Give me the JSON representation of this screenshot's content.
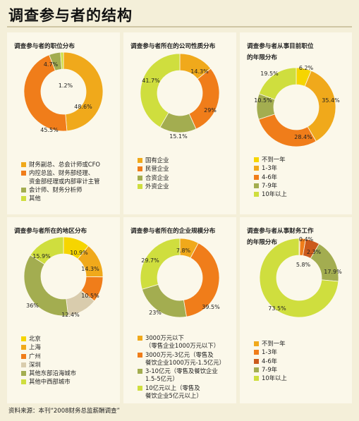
{
  "page": {
    "title": "调查参与者的结构",
    "source": "资料来源：本刊“2008财务总监薪酬调查”"
  },
  "colors": {
    "yellow": "#f6d500",
    "orange": "#f0a91b",
    "dark_orange": "#f07d1a",
    "dark_red": "#cb5a1c",
    "olive": "#a3ad50",
    "lime": "#cfde3e",
    "tan": "#d9ccad"
  },
  "chart_data": [
    {
      "type": "pie",
      "title": "调查参与者的职位分布",
      "slices": [
        {
          "label": "财务副总、总会计师或CFO",
          "value": 48.6,
          "value_label": "48.6%",
          "color": "#f0a91b"
        },
        {
          "label": "内控总监、财务部经理、资金部经理或内部审计主管",
          "value": 45.5,
          "value_label": "45.5%",
          "color": "#f07d1a"
        },
        {
          "label": "会计师、财务分析师",
          "value": 4.7,
          "value_label": "4.7%",
          "color": "#a3ad50"
        },
        {
          "label": "其他",
          "value": 1.2,
          "value_label": "1.2%",
          "color": "#cfde3e"
        }
      ],
      "legend": [
        [
          "财务副总、总会计师或CFO"
        ],
        [
          "内控总监、财务部经理、",
          "资金部经理或内部审计主管"
        ],
        [
          "会计师、财务分析师"
        ],
        [
          "其他"
        ]
      ]
    },
    {
      "type": "pie",
      "title": "调查参与者所在的公司性质分布",
      "slices": [
        {
          "label": "国有企业",
          "value": 14.3,
          "value_label": "14.3%",
          "color": "#f0a91b"
        },
        {
          "label": "民营企业",
          "value": 29,
          "value_label": "29%",
          "color": "#f07d1a"
        },
        {
          "label": "合资企业",
          "value": 15.1,
          "value_label": "15.1%",
          "color": "#a3ad50"
        },
        {
          "label": "外资企业",
          "value": 41.7,
          "value_label": "41.7%",
          "color": "#cfde3e"
        }
      ],
      "legend": [
        [
          "国有企业"
        ],
        [
          "民营企业"
        ],
        [
          "合资企业"
        ],
        [
          "外资企业"
        ]
      ]
    },
    {
      "type": "pie",
      "title": "调查参与者从事目前职位的年限分布",
      "title_lines": [
        "调查参与者从事目前职位",
        "的年限分布"
      ],
      "slices": [
        {
          "label": "不到一年",
          "value": 6.2,
          "value_label": "6.2%",
          "color": "#f6d500"
        },
        {
          "label": "1-3年",
          "value": 35.4,
          "value_label": "35.4%",
          "color": "#f0a91b"
        },
        {
          "label": "4-6年",
          "value": 28.4,
          "value_label": "28.4%",
          "color": "#f07d1a"
        },
        {
          "label": "7-9年",
          "value": 10.5,
          "value_label": "10.5%",
          "color": "#a3ad50"
        },
        {
          "label": "10年以上",
          "value": 19.5,
          "value_label": "19.5%",
          "color": "#cfde3e"
        }
      ],
      "legend": [
        [
          "不到一年"
        ],
        [
          "1-3年"
        ],
        [
          "4-6年"
        ],
        [
          "7-9年"
        ],
        [
          "10年以上"
        ]
      ]
    },
    {
      "type": "pie",
      "title": "调查参与者所在的地区分布",
      "slices": [
        {
          "label": "北京",
          "value": 10.9,
          "value_label": "10.9%",
          "color": "#f6d500"
        },
        {
          "label": "上海",
          "value": 14.3,
          "value_label": "14.3%",
          "color": "#f0a91b"
        },
        {
          "label": "广州",
          "value": 10.5,
          "value_label": "10.5%",
          "color": "#f07d1a"
        },
        {
          "label": "深圳",
          "value": 12.4,
          "value_label": "12.4%",
          "color": "#d9ccad"
        },
        {
          "label": "其他东部沿海城市",
          "value": 36,
          "value_label": "36%",
          "color": "#a3ad50"
        },
        {
          "label": "其他中西部城市",
          "value": 15.9,
          "value_label": "15.9%",
          "color": "#cfde3e"
        }
      ],
      "legend": [
        [
          "北京"
        ],
        [
          "上海"
        ],
        [
          "广州"
        ],
        [
          "深圳"
        ],
        [
          "其他东部沿海城市"
        ],
        [
          "其他中西部城市"
        ]
      ]
    },
    {
      "type": "pie",
      "title": "调查参与者所在的企业规模分布",
      "slices": [
        {
          "label": "3000万元以下（零售企业1000万元以下）",
          "value": 7.8,
          "value_label": "7.8%",
          "color": "#f0a91b"
        },
        {
          "label": "3000万元-3亿元（零售及餐饮企业1000万元-1.5亿元）",
          "value": 39.5,
          "value_label": "39.5%",
          "color": "#f07d1a"
        },
        {
          "label": "3-10亿元（零售及餐饮企业1.5-5亿元）",
          "value": 23,
          "value_label": "23%",
          "color": "#a3ad50"
        },
        {
          "label": "10亿元以上（零售及餐饮企业5亿元以上）",
          "value": 29.7,
          "value_label": "29.7%",
          "color": "#cfde3e"
        }
      ],
      "legend": [
        [
          "3000万元以下",
          "（零售企业1000万元以下）"
        ],
        [
          "3000万元-3亿元（零售及",
          "餐饮企业1000万元-1.5亿元）"
        ],
        [
          "3-10亿元（零售及餐饮企业",
          "1.5-5亿元）"
        ],
        [
          "10亿元以上（零售及",
          "餐饮企业5亿元以上）"
        ]
      ]
    },
    {
      "type": "pie",
      "title": "调查参与者从事财务工作的年限分布",
      "title_lines": [
        "调查参与者从事财务工作",
        "的年限分布"
      ],
      "slices": [
        {
          "label": "不到一年",
          "value": 0.4,
          "value_label": "0.4%",
          "color": "#f0a91b"
        },
        {
          "label": "1-3年",
          "value": 2.3,
          "value_label": "2.3%",
          "color": "#f07d1a"
        },
        {
          "label": "4-6年",
          "value": 5.8,
          "value_label": "5.8%",
          "color": "#cb5a1c"
        },
        {
          "label": "7-9年",
          "value": 17.9,
          "value_label": "17.9%",
          "color": "#a3ad50"
        },
        {
          "label": "10年以上",
          "value": 73.5,
          "value_label": "73.5%",
          "color": "#cfde3e"
        }
      ],
      "legend": [
        [
          "不到一年"
        ],
        [
          "1-3年"
        ],
        [
          "4-6年"
        ],
        [
          "7-9年"
        ],
        [
          "10年以上"
        ]
      ]
    }
  ]
}
